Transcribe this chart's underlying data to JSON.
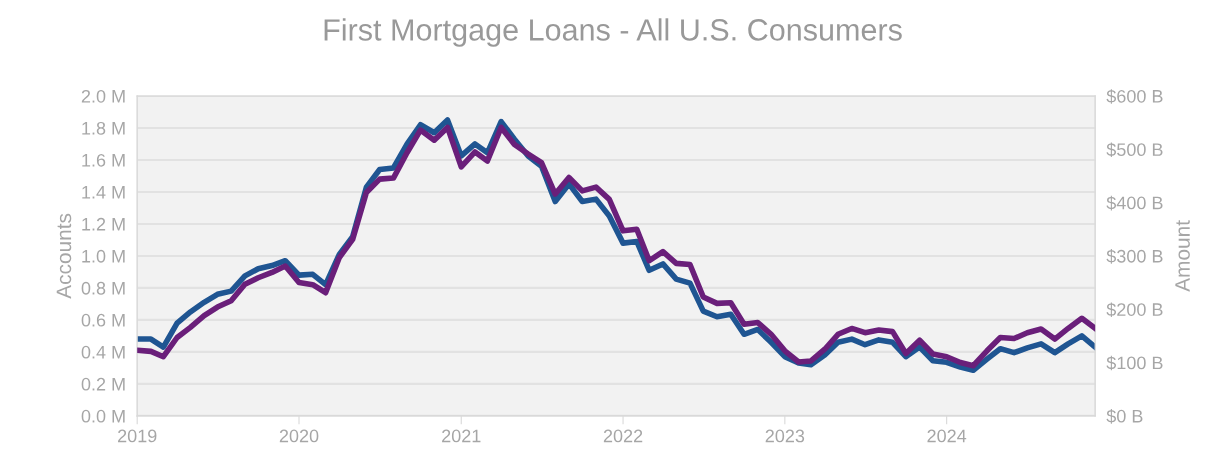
{
  "chart_data": {
    "type": "line",
    "title": "First Mortgage Loans - All U.S. Consumers",
    "ylabel": "Accounts",
    "y2label": "Amount",
    "x": [
      "2019-01",
      "2019-02",
      "2019-03",
      "2019-04",
      "2019-05",
      "2019-06",
      "2019-07",
      "2019-08",
      "2019-09",
      "2019-10",
      "2019-11",
      "2019-12",
      "2020-01",
      "2020-02",
      "2020-03",
      "2020-04",
      "2020-05",
      "2020-06",
      "2020-07",
      "2020-08",
      "2020-09",
      "2020-10",
      "2020-11",
      "2020-12",
      "2021-01",
      "2021-02",
      "2021-03",
      "2021-04",
      "2021-05",
      "2021-06",
      "2021-07",
      "2021-08",
      "2021-09",
      "2021-10",
      "2021-11",
      "2021-12",
      "2022-01",
      "2022-02",
      "2022-03",
      "2022-04",
      "2022-05",
      "2022-06",
      "2022-07",
      "2022-08",
      "2022-09",
      "2022-10",
      "2022-11",
      "2022-12",
      "2023-01",
      "2023-02",
      "2023-03",
      "2023-04",
      "2023-05",
      "2023-06",
      "2023-07",
      "2023-08",
      "2023-09",
      "2023-10",
      "2023-11",
      "2023-12",
      "2024-01",
      "2024-02",
      "2024-03",
      "2024-04",
      "2024-05",
      "2024-06",
      "2024-07",
      "2024-08",
      "2024-09",
      "2024-10",
      "2024-11",
      "2024-12"
    ],
    "series": [
      {
        "color": "#1f5592",
        "values": [
          0.48,
          0.48,
          0.43,
          0.58,
          0.65,
          0.71,
          0.76,
          0.78,
          0.875,
          0.92,
          0.94,
          0.97,
          0.88,
          0.885,
          0.82,
          1.01,
          1.12,
          1.43,
          1.54,
          1.55,
          1.7,
          1.82,
          1.77,
          1.85,
          1.625,
          1.7,
          1.645,
          1.84,
          1.73,
          1.625,
          1.56,
          1.34,
          1.45,
          1.34,
          1.355,
          1.25,
          1.08,
          1.09,
          0.91,
          0.95,
          0.855,
          0.83,
          0.655,
          0.62,
          0.635,
          0.51,
          0.54,
          0.46,
          0.37,
          0.33,
          0.32,
          0.38,
          0.46,
          0.48,
          0.445,
          0.475,
          0.46,
          0.37,
          0.43,
          0.345,
          0.335,
          0.305,
          0.285,
          0.355,
          0.42,
          0.395,
          0.425,
          0.45,
          0.395,
          0.45,
          0.5,
          0.43
        ]
      },
      {
        "color": "#6a1f7a",
        "axis": "y2",
        "values": [
          123,
          121,
          111,
          147,
          166,
          188,
          204,
          216,
          247,
          259,
          269,
          281,
          250,
          246,
          231,
          297,
          331,
          419,
          444,
          446,
          494,
          536,
          517,
          541,
          467,
          495,
          478,
          541,
          509,
          491,
          475,
          416,
          447,
          422,
          429,
          406,
          347,
          350,
          291,
          308,
          286,
          284,
          223,
          211,
          212,
          172,
          175,
          153,
          122,
          101,
          103,
          125,
          153,
          164,
          156,
          161,
          158,
          117,
          142,
          116,
          111,
          100,
          94,
          122,
          147,
          145,
          156,
          163,
          144,
          164,
          183,
          164
        ]
      }
    ],
    "xlim": [
      "2019-01",
      "2024-12"
    ],
    "xticks": [
      {
        "value": "2019-01",
        "label": "2019"
      },
      {
        "value": "2020-01",
        "label": "2020"
      },
      {
        "value": "2021-01",
        "label": "2021"
      },
      {
        "value": "2022-01",
        "label": "2022"
      },
      {
        "value": "2023-01",
        "label": "2023"
      },
      {
        "value": "2024-01",
        "label": "2024"
      }
    ],
    "ylim": [
      0,
      2.0
    ],
    "yticks": [
      {
        "value": 0,
        "label": "0.0 M"
      },
      {
        "value": 0.2,
        "label": "0.2 M"
      },
      {
        "value": 0.4,
        "label": "0.4 M"
      },
      {
        "value": 0.6,
        "label": "0.6 M"
      },
      {
        "value": 0.8,
        "label": "0.8 M"
      },
      {
        "value": 1.0,
        "label": "1.0 M"
      },
      {
        "value": 1.2,
        "label": "1.2 M"
      },
      {
        "value": 1.4,
        "label": "1.4 M"
      },
      {
        "value": 1.6,
        "label": "1.6 M"
      },
      {
        "value": 1.8,
        "label": "1.8 M"
      },
      {
        "value": 2.0,
        "label": "2.0 M"
      }
    ],
    "y2lim": [
      0,
      600
    ],
    "y2ticks": [
      {
        "value": 0,
        "label": "$0 B"
      },
      {
        "value": 100,
        "label": "$100 B"
      },
      {
        "value": 200,
        "label": "$200 B"
      },
      {
        "value": 300,
        "label": "$300 B"
      },
      {
        "value": 400,
        "label": "$400 B"
      },
      {
        "value": 500,
        "label": "$500 B"
      },
      {
        "value": 600,
        "label": "$600 B"
      }
    ],
    "grid": "y"
  }
}
